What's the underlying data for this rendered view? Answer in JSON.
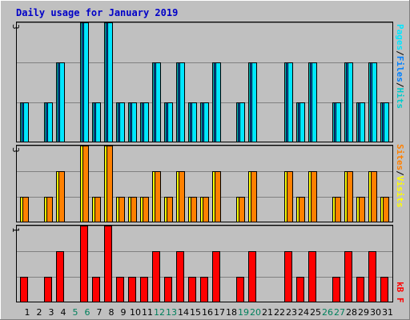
{
  "title": "Daily usage for January 2019",
  "colors": {
    "background": "#c0c0c0",
    "title": "#0000c8",
    "grid": "#808080",
    "weekday": "#000000",
    "weekend": "#00805c",
    "hits": "#00cccc",
    "files": "#0080ff",
    "pages": "#00e6ff",
    "sites": "#ff8000",
    "visits": "#ffff00",
    "kbf": "#ff0000"
  },
  "side_labels": {
    "top": [
      "Pages",
      "Files",
      "Hits"
    ],
    "middle": [
      "Sites",
      "Visits"
    ],
    "bottom": [
      "kB F"
    ]
  },
  "chart_data": [
    {
      "type": "bar",
      "title": "Daily usage for January 2019",
      "categories": [
        "1",
        "2",
        "3",
        "4",
        "5",
        "6",
        "7",
        "8",
        "9",
        "10",
        "11",
        "12",
        "13",
        "14",
        "15",
        "16",
        "17",
        "18",
        "19",
        "20",
        "21",
        "22",
        "23",
        "24",
        "25",
        "26",
        "27",
        "28",
        "29",
        "30",
        "31"
      ],
      "weekend_days": [
        "5",
        "6",
        "12",
        "13",
        "19",
        "20",
        "26",
        "27"
      ],
      "ylim": [
        0,
        3
      ],
      "ylabel_max": "3",
      "series": [
        {
          "name": "Hits",
          "values": [
            1,
            0,
            1,
            2,
            0,
            3,
            1,
            3,
            1,
            1,
            1,
            2,
            1,
            2,
            1,
            1,
            2,
            0,
            1,
            2,
            0,
            0,
            2,
            1,
            2,
            0,
            1,
            2,
            1,
            2,
            1
          ]
        },
        {
          "name": "Files",
          "values": [
            1,
            0,
            1,
            2,
            0,
            3,
            1,
            3,
            1,
            1,
            1,
            2,
            1,
            2,
            1,
            1,
            2,
            0,
            1,
            2,
            0,
            0,
            2,
            1,
            2,
            0,
            1,
            2,
            1,
            2,
            1
          ]
        },
        {
          "name": "Pages",
          "values": [
            1,
            0,
            1,
            2,
            0,
            3,
            1,
            3,
            1,
            1,
            1,
            2,
            1,
            2,
            1,
            1,
            2,
            0,
            1,
            2,
            0,
            0,
            2,
            1,
            2,
            0,
            1,
            2,
            1,
            2,
            1
          ]
        }
      ]
    },
    {
      "type": "bar",
      "categories": [
        "1",
        "2",
        "3",
        "4",
        "5",
        "6",
        "7",
        "8",
        "9",
        "10",
        "11",
        "12",
        "13",
        "14",
        "15",
        "16",
        "17",
        "18",
        "19",
        "20",
        "21",
        "22",
        "23",
        "24",
        "25",
        "26",
        "27",
        "28",
        "29",
        "30",
        "31"
      ],
      "ylim": [
        0,
        3
      ],
      "ylabel_max": "3",
      "series": [
        {
          "name": "Visits",
          "values": [
            1,
            0,
            1,
            2,
            0,
            3,
            1,
            3,
            1,
            1,
            1,
            2,
            1,
            2,
            1,
            1,
            2,
            0,
            1,
            2,
            0,
            0,
            2,
            1,
            2,
            0,
            1,
            2,
            1,
            2,
            1
          ]
        },
        {
          "name": "Sites",
          "values": [
            1,
            0,
            1,
            2,
            0,
            3,
            1,
            3,
            1,
            1,
            1,
            2,
            1,
            2,
            1,
            1,
            2,
            0,
            1,
            2,
            0,
            0,
            2,
            1,
            2,
            0,
            1,
            2,
            1,
            2,
            1
          ]
        }
      ]
    },
    {
      "type": "bar",
      "categories": [
        "1",
        "2",
        "3",
        "4",
        "5",
        "6",
        "7",
        "8",
        "9",
        "10",
        "11",
        "12",
        "13",
        "14",
        "15",
        "16",
        "17",
        "18",
        "19",
        "20",
        "21",
        "22",
        "23",
        "24",
        "25",
        "26",
        "27",
        "28",
        "29",
        "30",
        "31"
      ],
      "ylim": [
        0,
        1
      ],
      "ylabel_max": "1",
      "series": [
        {
          "name": "kB F",
          "values": [
            0.333,
            0,
            0.333,
            0.667,
            0,
            1,
            0.333,
            1,
            0.333,
            0.333,
            0.333,
            0.667,
            0.333,
            0.667,
            0.333,
            0.333,
            0.667,
            0,
            0.333,
            0.667,
            0,
            0,
            0.667,
            0.333,
            0.667,
            0,
            0.333,
            0.667,
            0.333,
            0.667,
            0.333
          ]
        }
      ]
    }
  ]
}
